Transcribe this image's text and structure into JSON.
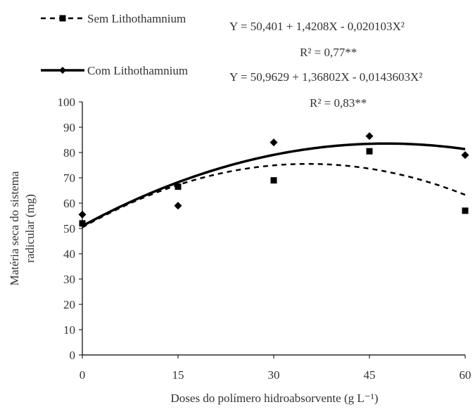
{
  "chart_data": {
    "type": "scatter",
    "xlabel": "Doses do polímero hidroabsorvente (g L⁻¹)",
    "ylabel_line1": "Matéria seca do sistema",
    "ylabel_line2": "radicular (mg)",
    "xlim": [
      0,
      60
    ],
    "ylim": [
      0,
      100
    ],
    "x_ticks": [
      0,
      15,
      30,
      45,
      60
    ],
    "y_ticks": [
      0,
      10,
      20,
      30,
      40,
      50,
      60,
      70,
      80,
      90,
      100
    ],
    "grid": false,
    "legend_position": "top-left",
    "series": [
      {
        "name": "Sem Lithothamnium",
        "marker": "square",
        "line_style": "dashed",
        "equation": "Y = 50,401 + 1,4208X - 0,020103X²",
        "r2": "R² = 0,77**",
        "coefficients": [
          50.401,
          1.4208,
          -0.020103
        ],
        "points": [
          [
            0,
            52
          ],
          [
            15,
            66.5
          ],
          [
            30,
            69
          ],
          [
            45,
            80.5
          ],
          [
            60,
            57
          ]
        ]
      },
      {
        "name": "Com Lithothamnium",
        "marker": "diamond",
        "line_style": "solid",
        "equation": "Y = 50,9629 + 1,36802X - 0,0143603X²",
        "r2": "R² = 0,83**",
        "coefficients": [
          50.9629,
          1.36802,
          -0.0143603
        ],
        "points": [
          [
            0,
            55.5
          ],
          [
            15,
            59
          ],
          [
            30,
            84
          ],
          [
            45,
            86.5
          ],
          [
            60,
            79
          ]
        ]
      }
    ]
  }
}
